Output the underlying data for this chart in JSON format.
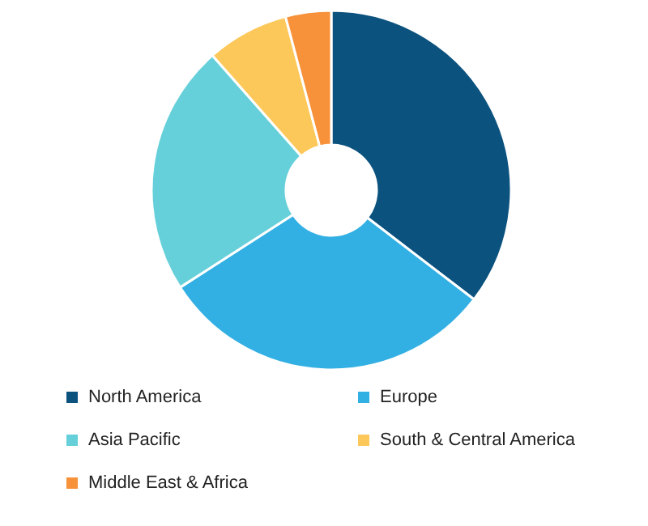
{
  "chart_data": {
    "type": "donut",
    "categories": [
      "North America",
      "Europe",
      "Asia Pacific",
      "South & Central America",
      "Middle East & Africa"
    ],
    "values": [
      35.4,
      30.5,
      22.6,
      7.4,
      4.1
    ],
    "colors": [
      "#0b527e",
      "#33b0e3",
      "#66d0da",
      "#fdc85a",
      "#f7923a"
    ],
    "legend": "bottom"
  }
}
